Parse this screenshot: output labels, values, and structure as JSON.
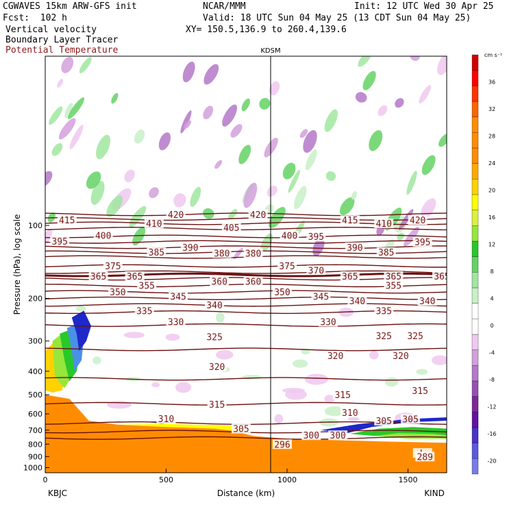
{
  "header": {
    "model": "CGWAVES 15km ARW-GFS init",
    "center": "NCAR/MMM",
    "init": "Init: 12 UTC Wed 30 Apr 25",
    "forecast": "Fcst:  102 h",
    "valid": "Valid: 18 UTC Sun 04 May 25 (13 CDT Sun 04 May 25)",
    "fields": [
      "Vertical velocity",
      "Boundary Layer Tracer",
      "Potential Temperature"
    ],
    "xy": "XY= 150.5,136.9 to 260.4,139.6"
  },
  "colors": {
    "theta": "#6b0f0f",
    "theta_label": "#7a1818",
    "tracer": "#ff8c00"
  },
  "chart_data": {
    "type": "heatmap",
    "station_marker": {
      "label": "KDSM",
      "x_km": 932
    },
    "xlabel": "Distance (km)",
    "ylabel": "Pressure (hPa), log scale",
    "xlim": [
      0,
      1660
    ],
    "ylim": [
      1050,
      20
    ],
    "y_scale": "log",
    "x_ticks": [
      0,
      500,
      1000,
      1500
    ],
    "y_ticks": [
      100,
      200,
      300,
      400,
      500,
      600,
      700,
      800,
      900,
      1000
    ],
    "x_end_labels": {
      "left": "KBJC",
      "right": "KIND"
    },
    "colorbar": {
      "unit": "cm s⁻¹",
      "colors": [
        "#7a7ae6",
        "#5a5adc",
        "#4a32c8",
        "#6414a0",
        "#7d2896",
        "#9650b4",
        "#b478c8",
        "#d2a0dc",
        "#f0c8f0",
        "#ffffff",
        "#ffffff",
        "#c8f0c8",
        "#a0e6a0",
        "#64d264",
        "#28c828",
        "#96e63c",
        "#dcf03c",
        "#ffff00",
        "#ffd200",
        "#ffaa00",
        "#ff8c00",
        "#ff8c00",
        "#ff8c00",
        "#ff6400",
        "#ff3200",
        "#ff0000",
        "#d20000"
      ],
      "tick_labels": [
        "-20",
        "-16",
        "-12",
        "-8",
        "-4",
        "0",
        "4",
        "8",
        "12",
        "16",
        "20",
        "24",
        "28",
        "32",
        "36"
      ],
      "tick_values": [
        -20,
        -16,
        -12,
        -8,
        -4,
        0,
        4,
        8,
        12,
        16,
        20,
        24,
        28,
        32,
        36
      ]
    },
    "isentropes": [
      {
        "theta": 300,
        "p_hpa": 755
      },
      {
        "theta": 305,
        "p_hpa": 710
      },
      {
        "theta": 310,
        "p_hpa": 655
      },
      {
        "theta": 315,
        "p_hpa": 545
      },
      {
        "theta": 320,
        "p_hpa": 430
      },
      {
        "theta": 325,
        "p_hpa": 325
      },
      {
        "theta": 330,
        "p_hpa": 258
      },
      {
        "theta": 335,
        "p_hpa": 228
      },
      {
        "theta": 340,
        "p_hpa": 213
      },
      {
        "theta": 345,
        "p_hpa": 200
      },
      {
        "theta": 350,
        "p_hpa": 188
      },
      {
        "theta": 355,
        "p_hpa": 177
      },
      {
        "theta": 360,
        "p_hpa": 166
      },
      {
        "theta": 365,
        "p_hpa": 160
      },
      {
        "theta": 370,
        "p_hpa": 156
      },
      {
        "theta": 375,
        "p_hpa": 147
      },
      {
        "theta": 380,
        "p_hpa": 135
      },
      {
        "theta": 385,
        "p_hpa": 129
      },
      {
        "theta": 390,
        "p_hpa": 123
      },
      {
        "theta": 395,
        "p_hpa": 117
      },
      {
        "theta": 400,
        "p_hpa": 111
      },
      {
        "theta": 405,
        "p_hpa": 103
      },
      {
        "theta": 410,
        "p_hpa": 98
      },
      {
        "theta": 415,
        "p_hpa": 94
      },
      {
        "theta": 420,
        "p_hpa": 90
      }
    ],
    "theta_labels": [
      {
        "text": "415",
        "x_km": 90,
        "p_hpa": 95
      },
      {
        "text": "410",
        "x_km": 450,
        "p_hpa": 98
      },
      {
        "text": "420",
        "x_km": 540,
        "p_hpa": 90
      },
      {
        "text": "405",
        "x_km": 770,
        "p_hpa": 102
      },
      {
        "text": "420",
        "x_km": 880,
        "p_hpa": 90
      },
      {
        "text": "415",
        "x_km": 1260,
        "p_hpa": 95
      },
      {
        "text": "410",
        "x_km": 1400,
        "p_hpa": 98
      },
      {
        "text": "420",
        "x_km": 1540,
        "p_hpa": 95
      },
      {
        "text": "395",
        "x_km": 60,
        "p_hpa": 116
      },
      {
        "text": "400",
        "x_km": 240,
        "p_hpa": 110
      },
      {
        "text": "390",
        "x_km": 600,
        "p_hpa": 123
      },
      {
        "text": "380",
        "x_km": 730,
        "p_hpa": 130
      },
      {
        "text": "380",
        "x_km": 860,
        "p_hpa": 130
      },
      {
        "text": "400",
        "x_km": 1010,
        "p_hpa": 110
      },
      {
        "text": "395",
        "x_km": 1120,
        "p_hpa": 111
      },
      {
        "text": "390",
        "x_km": 1280,
        "p_hpa": 123
      },
      {
        "text": "385",
        "x_km": 1410,
        "p_hpa": 129
      },
      {
        "text": "395",
        "x_km": 1560,
        "p_hpa": 117
      },
      {
        "text": "385",
        "x_km": 460,
        "p_hpa": 129
      },
      {
        "text": "375",
        "x_km": 280,
        "p_hpa": 147
      },
      {
        "text": "375",
        "x_km": 1000,
        "p_hpa": 147
      },
      {
        "text": "370",
        "x_km": 1120,
        "p_hpa": 153
      },
      {
        "text": "360",
        "x_km": 720,
        "p_hpa": 170
      },
      {
        "text": "360",
        "x_km": 860,
        "p_hpa": 170
      },
      {
        "text": "350",
        "x_km": 300,
        "p_hpa": 188
      },
      {
        "text": "355",
        "x_km": 420,
        "p_hpa": 177
      },
      {
        "text": "345",
        "x_km": 550,
        "p_hpa": 196
      },
      {
        "text": "340",
        "x_km": 700,
        "p_hpa": 213
      },
      {
        "text": "350",
        "x_km": 980,
        "p_hpa": 188
      },
      {
        "text": "345",
        "x_km": 1140,
        "p_hpa": 196
      },
      {
        "text": "340",
        "x_km": 1290,
        "p_hpa": 205
      },
      {
        "text": "335",
        "x_km": 1400,
        "p_hpa": 225
      },
      {
        "text": "355",
        "x_km": 1440,
        "p_hpa": 177
      },
      {
        "text": "340",
        "x_km": 1580,
        "p_hpa": 205
      },
      {
        "text": "335",
        "x_km": 410,
        "p_hpa": 225
      },
      {
        "text": "330",
        "x_km": 540,
        "p_hpa": 250
      },
      {
        "text": "325",
        "x_km": 700,
        "p_hpa": 288
      },
      {
        "text": "330",
        "x_km": 1170,
        "p_hpa": 250
      },
      {
        "text": "325",
        "x_km": 1400,
        "p_hpa": 285
      },
      {
        "text": "325",
        "x_km": 1530,
        "p_hpa": 285
      },
      {
        "text": "320",
        "x_km": 710,
        "p_hpa": 382
      },
      {
        "text": "320",
        "x_km": 1200,
        "p_hpa": 345
      },
      {
        "text": "320",
        "x_km": 1470,
        "p_hpa": 345
      },
      {
        "text": "315",
        "x_km": 710,
        "p_hpa": 548
      },
      {
        "text": "315",
        "x_km": 1230,
        "p_hpa": 500
      },
      {
        "text": "315",
        "x_km": 1550,
        "p_hpa": 480
      },
      {
        "text": "310",
        "x_km": 500,
        "p_hpa": 628
      },
      {
        "text": "310",
        "x_km": 1260,
        "p_hpa": 592
      },
      {
        "text": "305",
        "x_km": 810,
        "p_hpa": 690
      },
      {
        "text": "305",
        "x_km": 1400,
        "p_hpa": 640
      },
      {
        "text": "305",
        "x_km": 1510,
        "p_hpa": 630
      },
      {
        "text": "300",
        "x_km": 1100,
        "p_hpa": 735
      },
      {
        "text": "300",
        "x_km": 1210,
        "p_hpa": 735
      },
      {
        "text": "296",
        "x_km": 980,
        "p_hpa": 800
      },
      {
        "text": "L",
        "x_km": 1560,
        "p_hpa": 870
      },
      {
        "text": "289",
        "x_km": 1570,
        "p_hpa": 900
      },
      {
        "text": "365",
        "x_km": 220,
        "p_hpa": 162
      },
      {
        "text": "365",
        "x_km": 370,
        "p_hpa": 162
      },
      {
        "text": "365",
        "x_km": 1260,
        "p_hpa": 162
      },
      {
        "text": "365",
        "x_km": 1440,
        "p_hpa": 162
      },
      {
        "text": "365",
        "x_km": 1640,
        "p_hpa": 162
      }
    ],
    "boundary_layer_tracer": [
      {
        "region": "west plume",
        "x_km": [
          0,
          240
        ],
        "p_top_hpa": 260,
        "max_percent": 100
      },
      {
        "region": "low-level",
        "x_km": [
          0,
          1660
        ],
        "p_top_hpa": 700,
        "max_percent": 100
      },
      {
        "region": "east layer",
        "x_km": [
          1140,
          1660
        ],
        "p_top_hpa": 700,
        "max_percent": 60
      }
    ]
  }
}
